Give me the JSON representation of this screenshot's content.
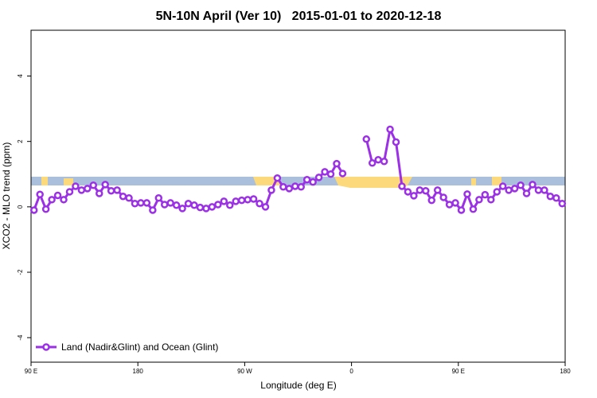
{
  "chart_data": {
    "type": "line",
    "title": "5N-10N April (Ver 10)   2015-01-01 to 2020-12-18",
    "xlabel": "Longitude (deg E)",
    "ylabel": "XCO2 - MLO trend (ppm)",
    "x": [
      92.5,
      97.5,
      102.5,
      107.5,
      112.5,
      117.5,
      122.5,
      127.5,
      132.5,
      137.5,
      142.5,
      147.5,
      152.5,
      157.5,
      162.5,
      167.5,
      172.5,
      177.5,
      182.5,
      187.5,
      192.5,
      197.5,
      202.5,
      207.5,
      212.5,
      217.5,
      222.5,
      227.5,
      232.5,
      237.5,
      242.5,
      247.5,
      252.5,
      257.5,
      262.5,
      267.5,
      272.5,
      277.5,
      282.5,
      287.5,
      292.5,
      297.5,
      302.5,
      307.5,
      312.5,
      317.5,
      322.5,
      327.5,
      332.5,
      337.5,
      342.5,
      347.5,
      352.5,
      357.5,
      362.5,
      367.5,
      372.5,
      377.5,
      382.5,
      387.5,
      392.5,
      397.5,
      402.5,
      407.5,
      412.5,
      417.5,
      422.5,
      427.5,
      432.5,
      437.5,
      442.5,
      447.5,
      452.5,
      457.5,
      462.5,
      467.5,
      472.5,
      477.5,
      482.5,
      487.5,
      492.5,
      497.5,
      502.5,
      507.5,
      512.5,
      517.5,
      522.5,
      527.5,
      532.5,
      537.5
    ],
    "series": [
      {
        "name": "Land (Nadir&Glint) and Ocean (Glint)",
        "color": "#9b30e6",
        "values": [
          -0.1,
          0.38,
          -0.07,
          0.22,
          0.35,
          0.22,
          0.46,
          0.63,
          0.51,
          0.56,
          0.66,
          0.41,
          0.68,
          0.49,
          0.51,
          0.32,
          0.27,
          0.1,
          0.12,
          0.12,
          -0.1,
          0.27,
          0.07,
          0.12,
          0.05,
          -0.05,
          0.1,
          0.05,
          -0.02,
          -0.05,
          0,
          0.07,
          0.17,
          0.05,
          0.17,
          0.2,
          0.22,
          0.24,
          0.1,
          0,
          0.51,
          0.88,
          0.61,
          0.56,
          0.63,
          0.61,
          0.83,
          0.76,
          0.9,
          1.07,
          1.0,
          1.32,
          1.02,
          null,
          null,
          null,
          2.07,
          1.34,
          1.44,
          1.39,
          2.37,
          1.98,
          0.63,
          0.46,
          0.34,
          0.51,
          0.49,
          0.2,
          0.51,
          0.29,
          0.07,
          0.12,
          -0.1,
          0.39,
          -0.07,
          0.22,
          0.37,
          0.22,
          0.46,
          0.63,
          0.51,
          0.56,
          0.66,
          0.41,
          0.68,
          0.51,
          0.51,
          0.32,
          0.27,
          0.1
        ]
      }
    ],
    "xlim": [
      90,
      540
    ],
    "xticks": [
      {
        "value": 90,
        "label": "90 E"
      },
      180,
      {
        "value": 270,
        "label": "90 W"
      },
      {
        "value": 360,
        "label": "0"
      },
      {
        "value": 450,
        "label": "90 E"
      },
      {
        "value": 540,
        "label": "180"
      }
    ],
    "ylim": [
      -4.75,
      5.4
    ],
    "yticks": [
      -4,
      -2,
      0,
      2,
      4
    ],
    "legend": "bottom-left"
  }
}
